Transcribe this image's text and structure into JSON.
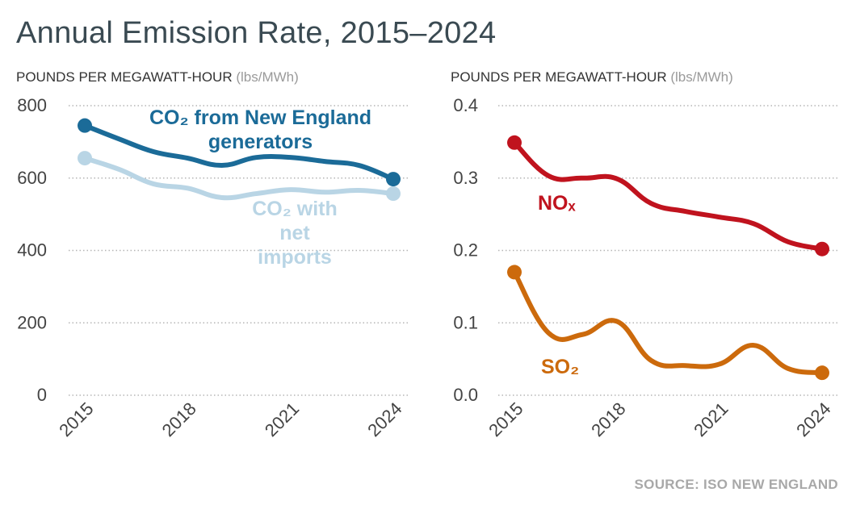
{
  "title": "Annual Emission Rate, 2015–2024",
  "source": "SOURCE: ISO NEW ENGLAND",
  "chart_data": [
    {
      "type": "line",
      "ylabel": "POUNDS PER MEGAWATT-HOUR",
      "yunit": "(lbs/MWh)",
      "x": [
        2015,
        2016,
        2017,
        2018,
        2019,
        2020,
        2021,
        2022,
        2023,
        2024
      ],
      "xticks": [
        "2015",
        "2018",
        "2021",
        "2024"
      ],
      "ylim": [
        0,
        800
      ],
      "yticks": [
        "0",
        "200",
        "400",
        "600",
        "800"
      ],
      "grid": true,
      "series": [
        {
          "name": [
            "CO₂ from New England",
            "generators"
          ],
          "color": "#1b6b98",
          "values": [
            745,
            708,
            673,
            655,
            635,
            657,
            657,
            646,
            635,
            597
          ]
        },
        {
          "name": [
            "CO₂ with",
            "net imports"
          ],
          "color": "#b9d5e5",
          "values": [
            655,
            624,
            584,
            572,
            546,
            557,
            568,
            561,
            566,
            557
          ]
        }
      ]
    },
    {
      "type": "line",
      "ylabel": "POUNDS PER MEGAWATT-HOUR",
      "yunit": "(lbs/MWh)",
      "x": [
        2015,
        2016,
        2017,
        2018,
        2019,
        2020,
        2021,
        2022,
        2023,
        2024
      ],
      "xticks": [
        "2015",
        "2018",
        "2021",
        "2024"
      ],
      "ylim": [
        0,
        0.4
      ],
      "yticks": [
        "0.0",
        "0.1",
        "0.2",
        "0.3",
        "0.4"
      ],
      "grid": true,
      "series": [
        {
          "name": [
            "NOₓ"
          ],
          "color": "#c0131e",
          "values": [
            0.349,
            0.303,
            0.3,
            0.299,
            0.265,
            0.254,
            0.246,
            0.237,
            0.212,
            0.202
          ]
        },
        {
          "name": [
            "SO₂"
          ],
          "color": "#cc6a0c",
          "values": [
            0.17,
            0.086,
            0.084,
            0.102,
            0.048,
            0.041,
            0.043,
            0.069,
            0.037,
            0.031
          ]
        }
      ]
    }
  ]
}
